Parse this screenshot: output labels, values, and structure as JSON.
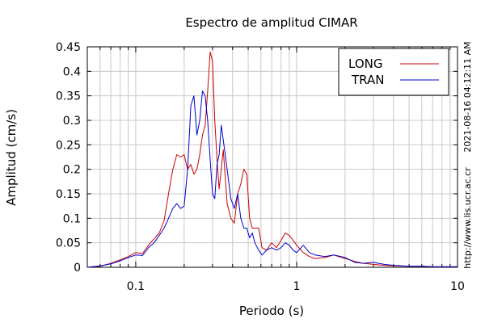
{
  "chart_data": {
    "type": "line",
    "title": "Espectro de amplitud CIMAR",
    "xlabel": "Periodo (s)",
    "ylabel": "Amplitud (cm/s)",
    "x_scale": "log",
    "xlim": [
      0.05,
      10
    ],
    "ylim": [
      0,
      0.45
    ],
    "x_ticks": [
      0.1,
      1,
      10
    ],
    "x_tick_labels": [
      "0.1",
      "1",
      "10"
    ],
    "y_ticks": [
      0,
      0.05,
      0.1,
      0.15,
      0.2,
      0.25,
      0.3,
      0.35,
      0.4,
      0.45
    ],
    "y_tick_labels": [
      "0",
      "0.05",
      "0.1",
      "0.15",
      "0.2",
      "0.25",
      "0.3",
      "0.35",
      "0.4",
      "0.45"
    ],
    "grid": true,
    "legend_position": "top-right",
    "series": [
      {
        "name": "LONG",
        "color": "#cc0000",
        "x": [
          0.05,
          0.06,
          0.07,
          0.08,
          0.09,
          0.1,
          0.11,
          0.12,
          0.13,
          0.14,
          0.15,
          0.16,
          0.17,
          0.18,
          0.19,
          0.2,
          0.21,
          0.22,
          0.23,
          0.24,
          0.25,
          0.26,
          0.27,
          0.28,
          0.29,
          0.3,
          0.31,
          0.32,
          0.33,
          0.34,
          0.35,
          0.37,
          0.39,
          0.41,
          0.43,
          0.45,
          0.47,
          0.49,
          0.51,
          0.53,
          0.55,
          0.58,
          0.61,
          0.65,
          0.7,
          0.75,
          0.8,
          0.85,
          0.9,
          0.95,
          1.0,
          1.1,
          1.2,
          1.3,
          1.5,
          1.7,
          2.0,
          2.3,
          2.6,
          3.0,
          3.5,
          4.0,
          5.0,
          6.0,
          7.0,
          8.0,
          10.0
        ],
        "y": [
          0.0,
          0.002,
          0.008,
          0.015,
          0.022,
          0.03,
          0.028,
          0.045,
          0.058,
          0.07,
          0.095,
          0.15,
          0.2,
          0.23,
          0.225,
          0.23,
          0.2,
          0.21,
          0.19,
          0.2,
          0.23,
          0.27,
          0.29,
          0.36,
          0.44,
          0.42,
          0.3,
          0.22,
          0.16,
          0.2,
          0.24,
          0.13,
          0.1,
          0.09,
          0.15,
          0.17,
          0.2,
          0.19,
          0.1,
          0.08,
          0.08,
          0.08,
          0.04,
          0.035,
          0.05,
          0.04,
          0.055,
          0.07,
          0.065,
          0.055,
          0.045,
          0.03,
          0.022,
          0.018,
          0.02,
          0.025,
          0.018,
          0.012,
          0.008,
          0.006,
          0.004,
          0.003,
          0.002,
          0.002,
          0.001,
          0.001,
          0.001
        ]
      },
      {
        "name": "TRAN",
        "color": "#0000cc",
        "x": [
          0.05,
          0.06,
          0.07,
          0.08,
          0.09,
          0.1,
          0.11,
          0.12,
          0.13,
          0.14,
          0.15,
          0.16,
          0.17,
          0.18,
          0.19,
          0.2,
          0.21,
          0.22,
          0.23,
          0.24,
          0.25,
          0.26,
          0.27,
          0.28,
          0.29,
          0.3,
          0.31,
          0.32,
          0.33,
          0.34,
          0.35,
          0.37,
          0.39,
          0.41,
          0.43,
          0.45,
          0.47,
          0.49,
          0.51,
          0.53,
          0.55,
          0.58,
          0.61,
          0.65,
          0.7,
          0.75,
          0.8,
          0.85,
          0.9,
          0.95,
          1.0,
          1.1,
          1.2,
          1.3,
          1.5,
          1.7,
          2.0,
          2.3,
          2.6,
          3.0,
          3.5,
          4.0,
          5.0,
          6.0,
          7.0,
          8.0,
          10.0
        ],
        "y": [
          0.0,
          0.003,
          0.007,
          0.013,
          0.02,
          0.025,
          0.024,
          0.04,
          0.05,
          0.065,
          0.08,
          0.1,
          0.12,
          0.13,
          0.12,
          0.125,
          0.2,
          0.33,
          0.35,
          0.27,
          0.3,
          0.36,
          0.35,
          0.3,
          0.22,
          0.15,
          0.14,
          0.21,
          0.23,
          0.29,
          0.26,
          0.2,
          0.14,
          0.12,
          0.15,
          0.1,
          0.08,
          0.08,
          0.06,
          0.07,
          0.05,
          0.035,
          0.025,
          0.035,
          0.04,
          0.035,
          0.04,
          0.05,
          0.045,
          0.035,
          0.03,
          0.045,
          0.03,
          0.025,
          0.022,
          0.025,
          0.02,
          0.01,
          0.008,
          0.01,
          0.006,
          0.004,
          0.002,
          0.002,
          0.001,
          0.001,
          0.001
        ]
      }
    ],
    "side_annotations": [
      "2021-08-16 04:12:11 AM",
      "http://www.lis.ucr.ac.cr"
    ]
  }
}
